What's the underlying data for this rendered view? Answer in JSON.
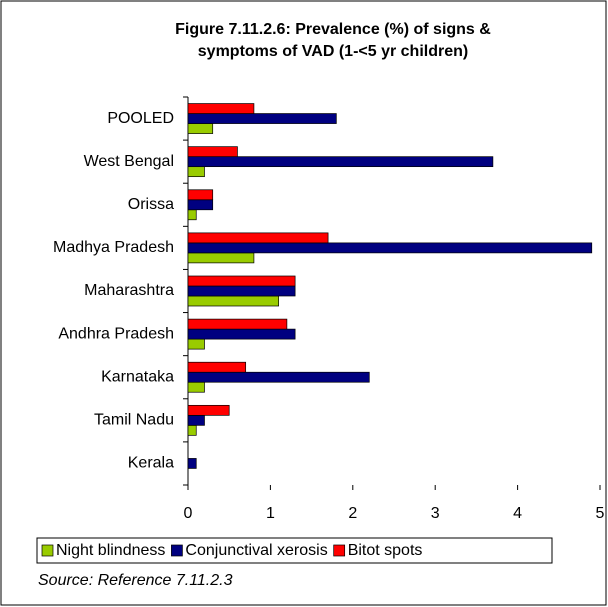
{
  "chart_data": {
    "type": "hbar",
    "title": [
      "Figure 7.11.2.6: Prevalence (%) of signs &",
      "symptoms of VAD (1-<5 yr children)"
    ],
    "categories": [
      "POOLED",
      "West Bengal",
      "Orissa",
      "Madhya Pradesh",
      "Maharashtra",
      "Andhra Pradesh",
      "Karnataka",
      "Tamil Nadu",
      "Kerala"
    ],
    "series": [
      {
        "name": "Night blindness",
        "color": "#99cc00",
        "values": [
          0.3,
          0.2,
          0.1,
          0.8,
          1.1,
          0.2,
          0.2,
          0.1,
          0
        ]
      },
      {
        "name": "Conjunctival xerosis",
        "color": "#000080",
        "values": [
          1.8,
          3.7,
          0.3,
          4.9,
          1.3,
          1.3,
          2.2,
          0.2,
          0.1
        ]
      },
      {
        "name": "Bitot spots",
        "color": "#ff0000",
        "values": [
          0.8,
          0.6,
          0.3,
          1.7,
          1.3,
          1.2,
          0.7,
          0.5,
          0
        ]
      }
    ],
    "xlim": [
      0,
      5
    ],
    "xticks": [
      0,
      1,
      2,
      3,
      4,
      5
    ],
    "legend": "bottom",
    "source": "Source: Reference 7.11.2.3"
  }
}
